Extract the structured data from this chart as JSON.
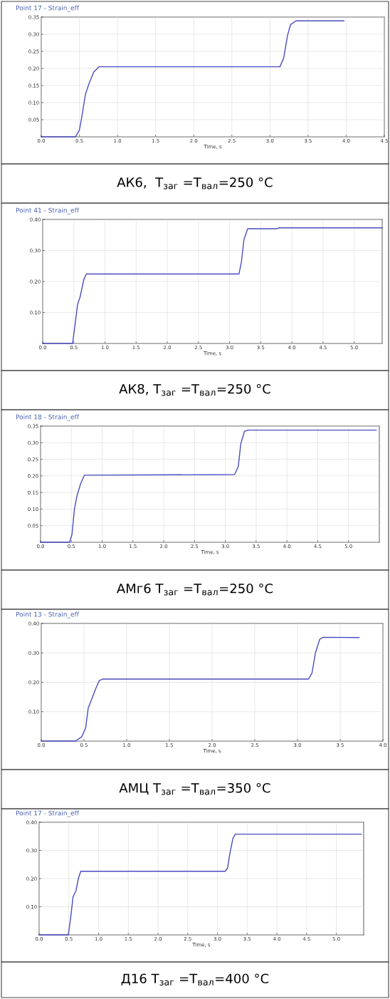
{
  "chart_data": [
    {
      "type": "line",
      "subtitle": "Point 17 - Strain_eff",
      "title": "АК6,  T$_{заг}$ =T$_{вал}$=250 °C",
      "xlabel": "Time, s",
      "xlim": [
        0,
        4.5
      ],
      "xticks": [
        {
          "value": 0,
          "label": "0.0"
        },
        0.5,
        {
          "value": 1,
          "label": "1.0"
        },
        1.5,
        {
          "value": 2,
          "label": "2.0"
        },
        2.5,
        {
          "value": 3,
          "label": "3.0"
        },
        3.5,
        {
          "value": 4,
          "label": "4.0"
        },
        4.5
      ],
      "ylim": [
        0,
        0.35
      ],
      "yticks": [
        {
          "value": 0,
          "label": null
        },
        0.05,
        {
          "value": 0.1,
          "label": "0.10"
        },
        0.15,
        {
          "value": 0.2,
          "label": "0.20"
        },
        0.25,
        {
          "value": 0.3,
          "label": "0.30"
        },
        0.35
      ],
      "grid": true,
      "tick_labels": "xy",
      "series": [
        {
          "color": "#4b4bc0",
          "x": [
            0,
            0.45,
            0.5,
            0.53,
            0.58,
            0.63,
            0.69,
            0.76,
            3.13,
            3.18,
            3.23,
            3.27,
            3.34,
            3.97
          ],
          "values": [
            0,
            0,
            0.02,
            0.056,
            0.125,
            0.158,
            0.19,
            0.205,
            0.205,
            0.23,
            0.296,
            0.328,
            0.339,
            0.339
          ]
        }
      ]
    },
    {
      "type": "line",
      "subtitle": "Point 41 - Strain_eff",
      "title": "АК8, T$_{заг}$ =T$_{вал}$=250 °C",
      "xlabel": "Time, s",
      "xlim": [
        0,
        5.45
      ],
      "xticks": [
        {
          "value": 0,
          "label": "0.0"
        },
        0.5,
        {
          "value": 1,
          "label": "1.0"
        },
        1.5,
        {
          "value": 2,
          "label": "2.0"
        },
        2.5,
        {
          "value": 3,
          "label": "3.0"
        },
        3.5,
        {
          "value": 4,
          "label": "4.0"
        },
        4.5,
        {
          "value": 5,
          "label": "5.0"
        }
      ],
      "ylim": [
        0,
        0.4
      ],
      "yticks": [
        {
          "value": 0,
          "label": null
        },
        {
          "value": 0.1,
          "label": "0.10"
        },
        {
          "value": 0.2,
          "label": "0.20"
        },
        {
          "value": 0.3,
          "label": "0.30"
        },
        {
          "value": 0.4,
          "label": "0.40"
        }
      ],
      "grid": true,
      "series": [
        {
          "color": "#4b4bc0",
          "x": [
            0,
            0.48,
            0.52,
            0.56,
            0.6,
            0.66,
            0.7,
            3.15,
            3.19,
            3.23,
            3.29,
            3.75,
            3.8,
            5.45
          ],
          "values": [
            0,
            0,
            0.062,
            0.126,
            0.15,
            0.206,
            0.224,
            0.224,
            0.262,
            0.334,
            0.37,
            0.37,
            0.373,
            0.373
          ]
        }
      ]
    },
    {
      "type": "line",
      "subtitle": "Point 18 - Strain_eff",
      "title": "АМг6 T$_{заг}$ =T$_{вал}$=250 °C",
      "xlabel": "Time, s",
      "xlim": [
        0,
        5.5
      ],
      "xticks": [
        {
          "value": 0,
          "label": "0.0"
        },
        0.5,
        {
          "value": 1,
          "label": "1.0"
        },
        1.5,
        {
          "value": 2,
          "label": "2.0"
        },
        2.5,
        {
          "value": 3,
          "label": "3.0"
        },
        3.5,
        {
          "value": 4,
          "label": "4.0"
        },
        4.5,
        {
          "value": 5,
          "label": "5.0"
        }
      ],
      "ylim": [
        0,
        0.35
      ],
      "yticks": [
        {
          "value": 0,
          "label": null
        },
        0.05,
        {
          "value": 0.1,
          "label": "0.10"
        },
        0.15,
        {
          "value": 0.2,
          "label": "0.20"
        },
        0.25,
        {
          "value": 0.3,
          "label": "0.30"
        },
        0.35
      ],
      "grid": true,
      "series": [
        {
          "color": "#4b4bc0",
          "x": [
            0,
            0.47,
            0.51,
            0.55,
            0.59,
            0.65,
            0.71,
            3.15,
            3.21,
            3.25,
            3.31,
            3.37,
            5.45
          ],
          "values": [
            0,
            0,
            0.023,
            0.1,
            0.139,
            0.176,
            0.202,
            0.204,
            0.228,
            0.296,
            0.334,
            0.338,
            0.338
          ]
        }
      ]
    },
    {
      "type": "line",
      "subtitle": "Point 13 - Strain_eff",
      "title": "АМЦ T$_{заг}$ =T$_{вал}$=350 °C",
      "xlabel": "Time, s",
      "xlim": [
        0,
        4.0
      ],
      "xticks": [
        {
          "value": 0,
          "label": "0.0"
        },
        0.5,
        {
          "value": 1,
          "label": "1.0"
        },
        1.5,
        {
          "value": 2,
          "label": "2.0"
        },
        2.5,
        {
          "value": 3,
          "label": "3.0"
        },
        3.5,
        {
          "value": 4,
          "label": "4.0"
        }
      ],
      "ylim": [
        0,
        0.4
      ],
      "yticks": [
        {
          "value": 0,
          "label": null
        },
        {
          "value": 0.1,
          "label": "0.10"
        },
        {
          "value": 0.2,
          "label": "0.20"
        },
        {
          "value": 0.3,
          "label": "0.30"
        },
        {
          "value": 0.4,
          "label": "0.40"
        }
      ],
      "grid": true,
      "series": [
        {
          "color": "#4b4bc0",
          "x": [
            0,
            0.4,
            0.475,
            0.52,
            0.55,
            0.59,
            0.64,
            0.68,
            0.72,
            3.13,
            3.17,
            3.21,
            3.26,
            3.3,
            3.72
          ],
          "values": [
            0,
            0,
            0.015,
            0.045,
            0.113,
            0.142,
            0.18,
            0.206,
            0.211,
            0.211,
            0.231,
            0.3,
            0.346,
            0.353,
            0.352
          ]
        }
      ]
    },
    {
      "type": "line",
      "subtitle": "Point 17 - Strain_eff",
      "title": "Д16 T$_{заг}$ =T$_{вал}$=400 °C",
      "xlabel": "Time, s",
      "xlim": [
        0,
        5.46
      ],
      "xticks": [
        {
          "value": 0,
          "label": "0.0"
        },
        0.5,
        {
          "value": 1,
          "label": "1.0"
        },
        1.5,
        {
          "value": 2,
          "label": "2.0"
        },
        2.5,
        {
          "value": 3,
          "label": "3.0"
        },
        3.5,
        {
          "value": 4,
          "label": "4.0"
        },
        4.5,
        {
          "value": 5,
          "label": "5.0"
        }
      ],
      "ylim": [
        0,
        0.4
      ],
      "yticks": [
        {
          "value": 0,
          "label": null
        },
        {
          "value": 0.1,
          "label": "0.10"
        },
        {
          "value": 0.2,
          "label": "0.20"
        },
        {
          "value": 0.3,
          "label": "0.30"
        },
        {
          "value": 0.4,
          "label": "0.40"
        }
      ],
      "grid": true,
      "series": [
        {
          "color": "#4b4bc0",
          "x": [
            0,
            0.49,
            0.53,
            0.57,
            0.62,
            0.66,
            0.7,
            3.13,
            3.17,
            3.21,
            3.26,
            3.3,
            5.42
          ],
          "values": [
            0,
            0,
            0.06,
            0.135,
            0.157,
            0.2,
            0.226,
            0.226,
            0.237,
            0.29,
            0.343,
            0.358,
            0.358
          ]
        }
      ]
    }
  ]
}
